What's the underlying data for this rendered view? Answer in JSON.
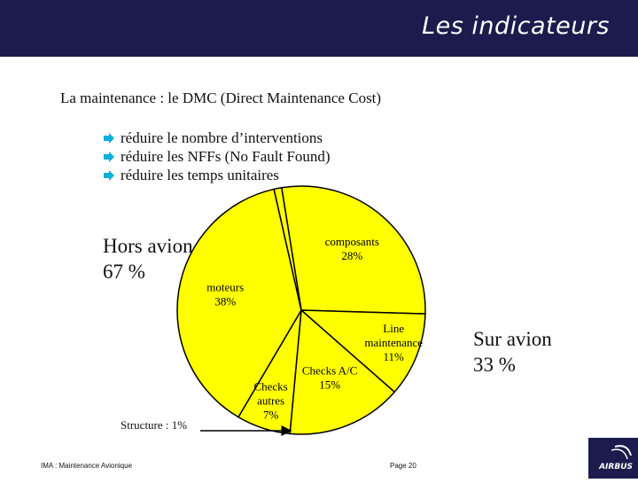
{
  "header": {
    "title": "Les indicateurs"
  },
  "subtitle": "La maintenance : le DMC (Direct Maintenance Cost)",
  "bullets": [
    "réduire le nombre d’interventions",
    "réduire les NFFs (No Fault Found)",
    "réduire les temps unitaires"
  ],
  "labels": {
    "hors_avion": [
      "Hors avion",
      "67 %"
    ],
    "sur_avion": [
      "Sur avion",
      "33 %"
    ],
    "structure": "Structure : 1%"
  },
  "footer": {
    "left": "IMA : Maintenance Avionique",
    "page": "Page 20"
  },
  "logo": {
    "text": "AIRBUS"
  },
  "colors": {
    "header_bg": "#1b1b4d",
    "pie_fill": "#ffff00",
    "arrow": "#00b0d8"
  },
  "chart_data": {
    "type": "pie",
    "slices": [
      {
        "label": [
          "composants",
          "28%"
        ],
        "value": 28
      },
      {
        "label": [
          "Line",
          "maintenance",
          "11%"
        ],
        "value": 11
      },
      {
        "label": [
          "Checks A/C",
          "15%"
        ],
        "value": 15
      },
      {
        "label": [
          "Checks",
          "autres",
          "7%"
        ],
        "value": 7
      },
      {
        "label": [
          "moteurs",
          "38%"
        ],
        "value": 38
      },
      {
        "label": [
          "Structure : 1%"
        ],
        "value": 1
      }
    ]
  }
}
